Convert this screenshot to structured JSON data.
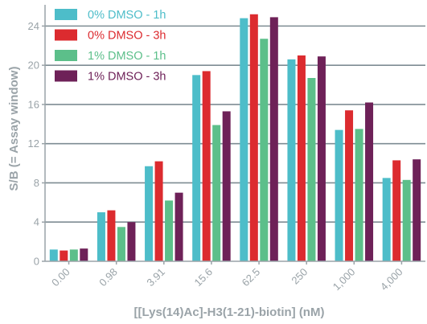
{
  "chart_data": {
    "type": "bar",
    "title": "",
    "xlabel": "[[Lys(14)Ac]-H3(1-21)-biotin] (nM)",
    "ylabel": "S/B (= Assay window)",
    "ylim": [
      0,
      26
    ],
    "yticks": [
      0,
      4,
      8,
      12,
      16,
      20,
      24
    ],
    "grid": true,
    "legend_position": "top-left",
    "categories": [
      "0.00",
      "0.98",
      "3.91",
      "15.6",
      "62.5",
      "250",
      "1,000",
      "4,000"
    ],
    "series": [
      {
        "name": "0% DMSO - 1h",
        "color": "#4dbdc9",
        "values": [
          1.2,
          5.0,
          9.7,
          19.0,
          24.8,
          20.6,
          13.4,
          8.5
        ]
      },
      {
        "name": "0% DMSO - 3h",
        "color": "#dc2b2f",
        "values": [
          1.1,
          5.2,
          10.2,
          19.4,
          25.2,
          21.0,
          15.4,
          10.3
        ]
      },
      {
        "name": "1% DMSO - 1h",
        "color": "#5cbf8a",
        "values": [
          1.2,
          3.5,
          6.2,
          13.9,
          22.7,
          18.7,
          13.5,
          8.3
        ]
      },
      {
        "name": "1% DMSO - 3h",
        "color": "#6e2158",
        "values": [
          1.3,
          4.0,
          7.0,
          15.3,
          24.9,
          20.9,
          16.2,
          10.4
        ]
      }
    ]
  }
}
